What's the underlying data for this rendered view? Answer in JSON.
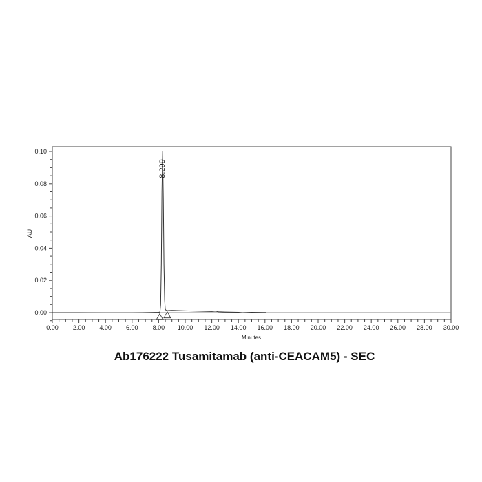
{
  "chart_data": {
    "type": "line",
    "title": "Ab176222 Tusamitamab (anti-CEACAM5) - SEC",
    "xlabel": "Minutes",
    "ylabel": "AU",
    "xlim": [
      0,
      30
    ],
    "ylim": [
      -0.005,
      0.103
    ],
    "x_ticks": [
      "0.00",
      "2.00",
      "4.00",
      "6.00",
      "8.00",
      "10.00",
      "12.00",
      "14.00",
      "16.00",
      "18.00",
      "20.00",
      "22.00",
      "24.00",
      "26.00",
      "28.00",
      "30.00"
    ],
    "y_ticks": [
      "0.00",
      "0.02",
      "0.04",
      "0.06",
      "0.08",
      "0.10"
    ],
    "grid": false,
    "baseline_color": "#888888",
    "trace_color": "#333333",
    "peak_labels": [
      {
        "x": 8.299,
        "label": "8.299"
      }
    ],
    "integration_markers": [
      {
        "x": 8.08,
        "y": -0.0015
      },
      {
        "x": 8.65,
        "y": -0.0003
      }
    ],
    "series": [
      {
        "x": [
          0,
          2,
          4,
          6,
          7.5,
          8.0,
          8.1,
          8.15,
          8.2,
          8.25,
          8.299,
          8.35,
          8.4,
          8.45,
          8.5,
          8.6,
          8.7,
          9.0,
          10,
          11,
          12,
          12.3,
          12.4,
          12.5,
          13,
          14,
          14.3,
          15,
          16,
          16.1
        ],
        "y": [
          0,
          0,
          -0.0001,
          -0.0001,
          0.0001,
          0.0002,
          0.0004,
          0.005,
          0.03,
          0.075,
          0.1,
          0.07,
          0.03,
          0.008,
          0.002,
          0.0011,
          0.0013,
          0.0014,
          0.0011,
          0.0009,
          0.0007,
          0.0009,
          0.0007,
          0.0005,
          0.0004,
          0.0002,
          0.0,
          0.0002,
          0.0001,
          0.0001
        ]
      }
    ]
  }
}
